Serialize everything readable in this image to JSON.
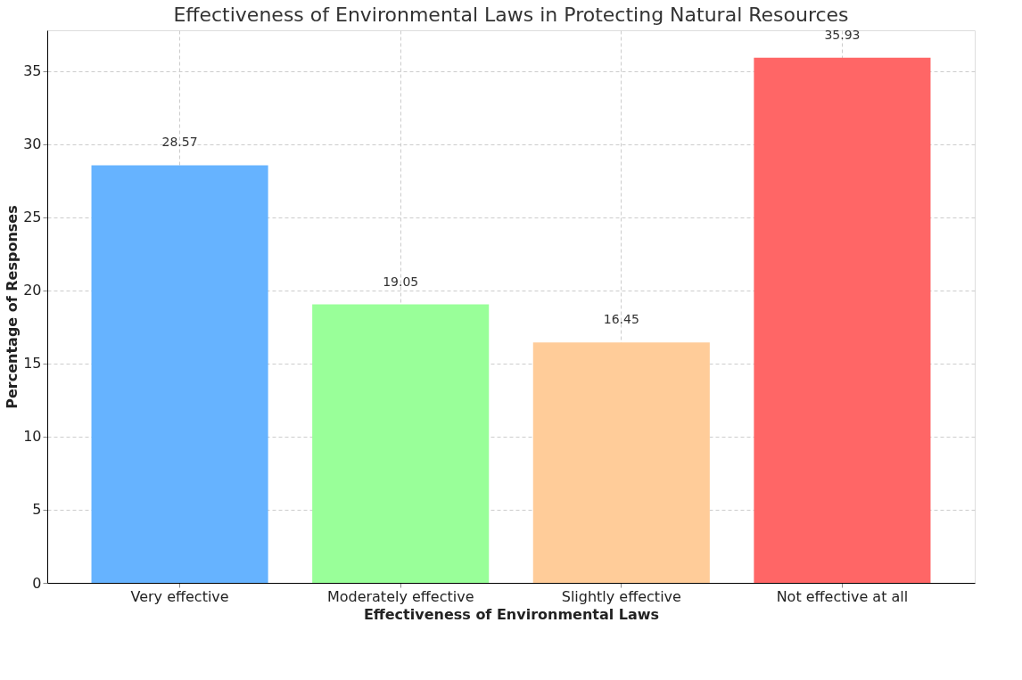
{
  "chart_data": {
    "type": "bar",
    "title": "Effectiveness of Environmental Laws in Protecting Natural Resources",
    "xlabel": "Effectiveness of Environmental Laws",
    "ylabel": "Percentage of Responses",
    "categories": [
      "Very effective",
      "Moderately effective",
      "Slightly effective",
      "Not effective at all"
    ],
    "values": [
      28.57,
      19.05,
      16.45,
      35.93
    ],
    "colors": [
      "#66b3ff",
      "#99ff99",
      "#ffcc99",
      "#ff6666"
    ],
    "ylim": [
      0,
      37.8
    ],
    "yticks": [
      0,
      5,
      10,
      15,
      20,
      25,
      30,
      35
    ],
    "grid": true,
    "data_labels": true
  }
}
